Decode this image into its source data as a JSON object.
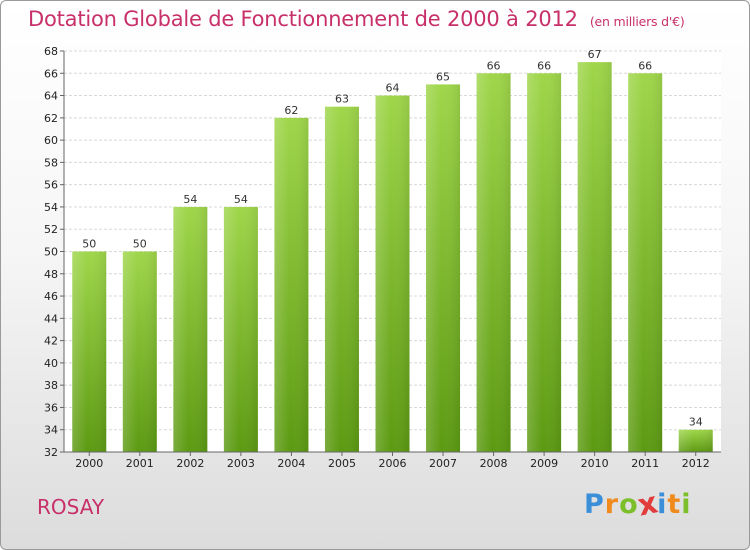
{
  "header": {
    "title": "Dotation Globale de Fonctionnement de 2000 à 2012",
    "subtitle": "(en milliers d'€)"
  },
  "footer": {
    "commune": "ROSAY",
    "logo_text": "Proxiti",
    "logo_letters": [
      {
        "char": "P",
        "color": "#3a8fd8"
      },
      {
        "char": "r",
        "color": "#f08a1c"
      },
      {
        "char": "o",
        "color": "#7cbf2a"
      },
      {
        "char": "x",
        "color": "#e23b3b"
      },
      {
        "char": "i",
        "color": "#3a8fd8"
      },
      {
        "char": "t",
        "color": "#f08a1c"
      },
      {
        "char": "i",
        "color": "#7cbf2a"
      }
    ]
  },
  "colors": {
    "accent": "#c8306a",
    "bar_top": "#9fd64a",
    "bar_bottom": "#5c9a12"
  },
  "chart_data": {
    "type": "bar",
    "categories": [
      "2000",
      "2001",
      "2002",
      "2003",
      "2004",
      "2005",
      "2006",
      "2007",
      "2008",
      "2009",
      "2010",
      "2011",
      "2012"
    ],
    "values": [
      50,
      50,
      54,
      54,
      62,
      63,
      64,
      65,
      66,
      66,
      67,
      66,
      34
    ],
    "title": "Dotation Globale de Fonctionnement de 2000 à 2012",
    "subtitle": "(en milliers d'€)",
    "xlabel": "",
    "ylabel": "",
    "ylim": [
      32,
      68
    ],
    "yticks": [
      32,
      34,
      36,
      38,
      40,
      42,
      44,
      46,
      48,
      50,
      52,
      54,
      56,
      58,
      60,
      62,
      64,
      66,
      68
    ],
    "grid": true,
    "data_labels": true
  }
}
